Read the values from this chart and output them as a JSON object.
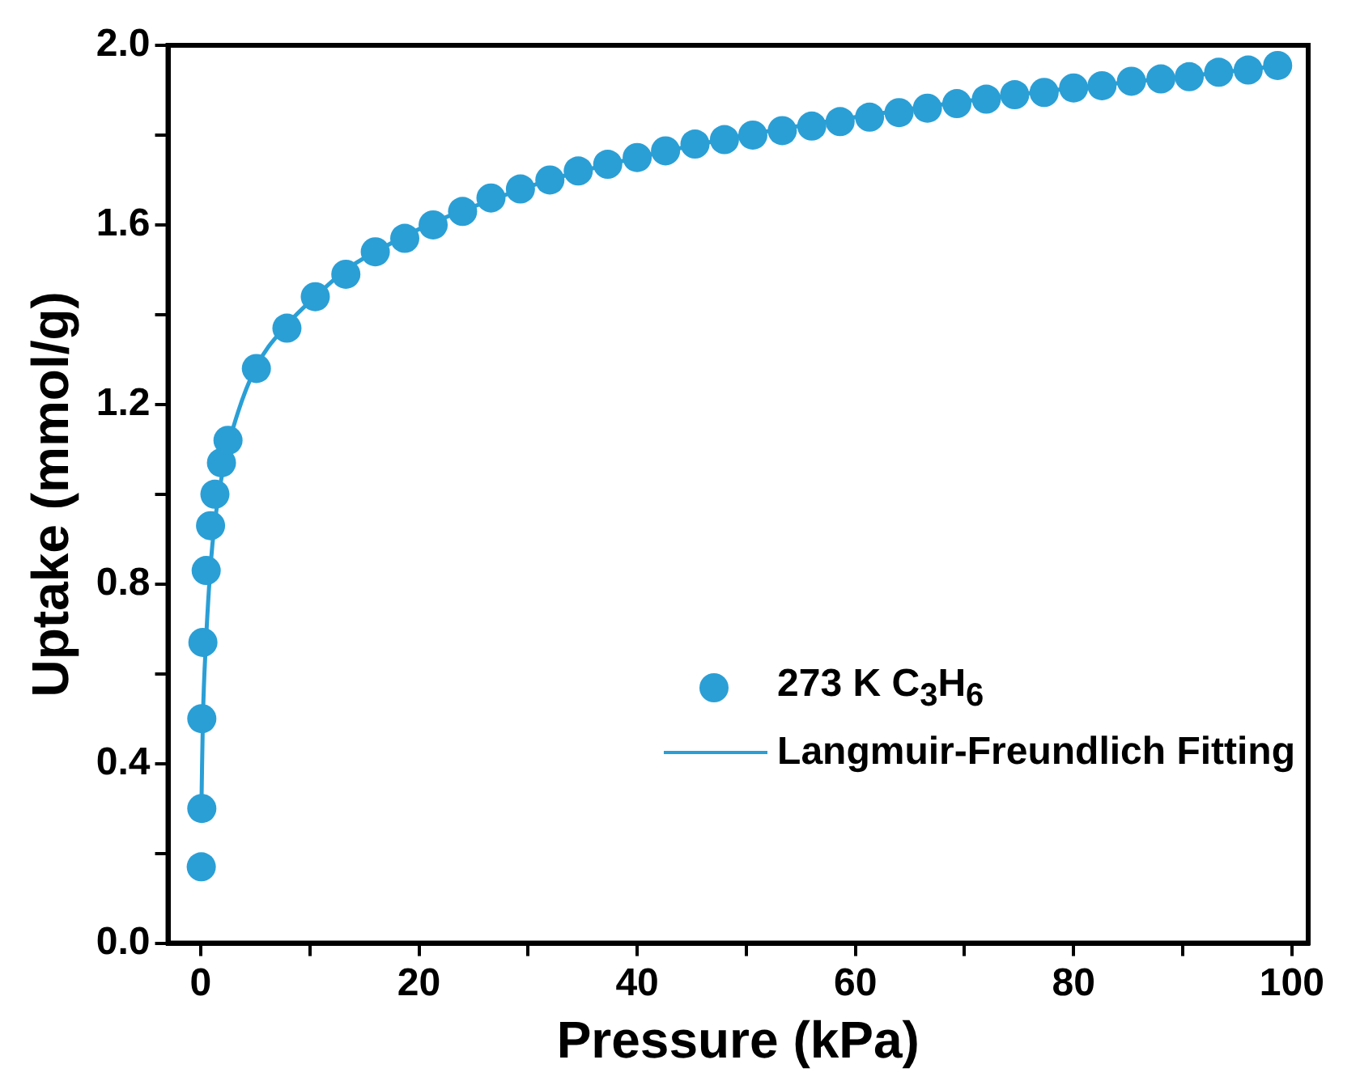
{
  "chart_data": {
    "type": "scatter",
    "xlabel": "Pressure (kPa)",
    "ylabel": "Uptake (mmol/g)",
    "xlim": [
      -3,
      101.5
    ],
    "ylim": [
      0,
      2.0
    ],
    "xticks": [
      0,
      {
        "value": 10,
        "label": null
      },
      20,
      {
        "value": 30,
        "label": null
      },
      40,
      {
        "value": 50,
        "label": null
      },
      60,
      {
        "value": 70,
        "label": null
      },
      80,
      {
        "value": 90,
        "label": null
      },
      100
    ],
    "yticks": [
      {
        "value": 0,
        "label": "0.0"
      },
      {
        "value": 0.2,
        "label": null
      },
      {
        "value": 0.4,
        "label": "0.4"
      },
      {
        "value": 0.6,
        "label": null
      },
      {
        "value": 0.8,
        "label": "0.8"
      },
      {
        "value": 1.0,
        "label": null
      },
      {
        "value": 1.2,
        "label": "1.2"
      },
      {
        "value": 1.4,
        "label": null
      },
      {
        "value": 1.6,
        "label": "1.6"
      },
      {
        "value": 1.8,
        "label": null
      },
      {
        "value": 2.0,
        "label": "2.0"
      }
    ],
    "grid": false,
    "legend": "bottom right",
    "series": [
      {
        "name": "273 K C$_{3}$H$_{6}$",
        "type": "scatter",
        "marker": "circle",
        "color": "#2a9fd6",
        "x": [
          0.05,
          0.1,
          0.1,
          0.2,
          0.5,
          0.9,
          1.3,
          1.9,
          2.5,
          5.1,
          7.9,
          10.5,
          13.3,
          16,
          18.7,
          21.3,
          24,
          26.6,
          29.3,
          32,
          34.6,
          37.3,
          40,
          42.6,
          45.3,
          48,
          50.6,
          53.3,
          56,
          58.6,
          61.3,
          64,
          66.6,
          69.3,
          72,
          74.6,
          77.3,
          80,
          82.6,
          85.3,
          88,
          90.6,
          93.3,
          96,
          98.7
        ],
        "values": [
          0.17,
          0.3,
          0.5,
          0.67,
          0.83,
          0.93,
          1.0,
          1.07,
          1.12,
          1.28,
          1.37,
          1.44,
          1.49,
          1.54,
          1.57,
          1.6,
          1.63,
          1.66,
          1.68,
          1.7,
          1.72,
          1.735,
          1.75,
          1.765,
          1.78,
          1.79,
          1.8,
          1.81,
          1.82,
          1.83,
          1.84,
          1.85,
          1.86,
          1.87,
          1.88,
          1.89,
          1.895,
          1.905,
          1.91,
          1.92,
          1.925,
          1.93,
          1.94,
          1.945,
          1.955
        ]
      },
      {
        "name": "Langmuir-Freundlich Fitting",
        "type": "line",
        "marker": "none",
        "color": "#2a9fd6",
        "line_style": "solid",
        "x": [
          0.05,
          0.1,
          0.2,
          0.5,
          0.9,
          1.3,
          2,
          3,
          5,
          8,
          10.5,
          13.3,
          16,
          21.3,
          26.6,
          32,
          40,
          50,
          60,
          70,
          80,
          90,
          99
        ],
        "values": [
          0.28,
          0.36,
          0.5,
          0.68,
          0.84,
          0.94,
          1.05,
          1.15,
          1.28,
          1.38,
          1.44,
          1.5,
          1.54,
          1.605,
          1.655,
          1.7,
          1.75,
          1.8,
          1.84,
          1.875,
          1.905,
          1.93,
          1.955
        ]
      }
    ]
  }
}
